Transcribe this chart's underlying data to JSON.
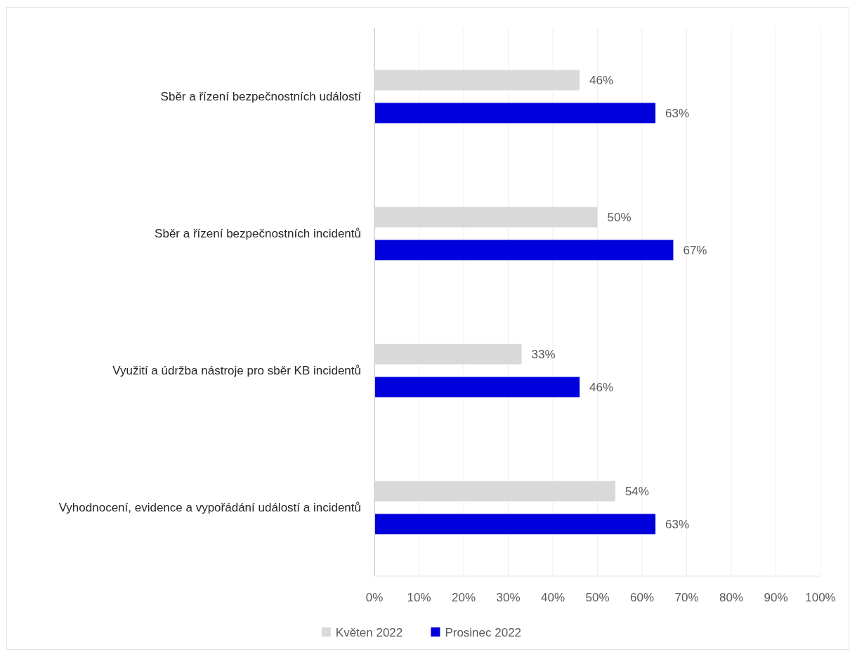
{
  "chart_data": {
    "type": "bar",
    "orientation": "horizontal",
    "categories": [
      "Sběr a řízení bezpečnostních událostí",
      "Sběr a řízení bezpečnostních incidentů",
      "Využití a údržba nástroje pro sběr KB incidentů",
      "Vyhodnocení, evidence a vypořádání událostí a incidentů"
    ],
    "series": [
      {
        "name": "Květen 2022",
        "color": "#d9d9d9",
        "values": [
          46,
          50,
          33,
          54
        ],
        "value_labels": [
          "46%",
          "50%",
          "33%",
          "54%"
        ]
      },
      {
        "name": "Prosinec 2022",
        "color": "#0000dc",
        "values": [
          63,
          67,
          46,
          63
        ],
        "value_labels": [
          "63%",
          "67%",
          "46%",
          "63%"
        ]
      }
    ],
    "xlim": [
      0,
      100
    ],
    "xticks": [
      {
        "value": 0,
        "label": "0%"
      },
      {
        "value": 10,
        "label": "10%"
      },
      {
        "value": 20,
        "label": "20%"
      },
      {
        "value": 30,
        "label": "30%"
      },
      {
        "value": 40,
        "label": "40%"
      },
      {
        "value": 50,
        "label": "50%"
      },
      {
        "value": 60,
        "label": "60%"
      },
      {
        "value": 70,
        "label": "70%"
      },
      {
        "value": 80,
        "label": "80%"
      },
      {
        "value": 90,
        "label": "90%"
      },
      {
        "value": 100,
        "label": "100%"
      }
    ],
    "grid": "x",
    "legend": "bottom"
  }
}
